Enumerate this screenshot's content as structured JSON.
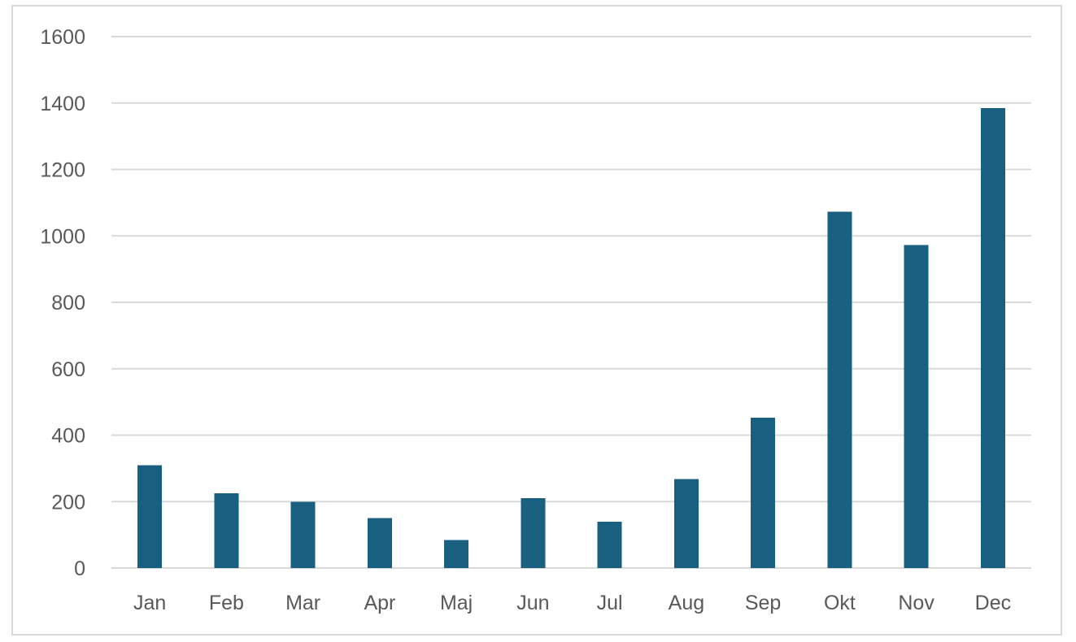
{
  "chart_data": {
    "type": "bar",
    "title": "",
    "xlabel": "",
    "ylabel": "",
    "categories": [
      "Jan",
      "Feb",
      "Mar",
      "Apr",
      "Maj",
      "Jun",
      "Jul",
      "Aug",
      "Sep",
      "Okt",
      "Nov",
      "Dec"
    ],
    "values": [
      310,
      225,
      200,
      150,
      85,
      210,
      140,
      268,
      453,
      1073,
      973,
      1385
    ],
    "ylim": [
      0,
      1600
    ],
    "yticks": [
      0,
      200,
      400,
      600,
      800,
      1000,
      1200,
      1400,
      1600
    ],
    "grid": true,
    "legend": "none",
    "bar_color": "#195f80",
    "grid_color": "#d9d9d9",
    "label_color": "#595959"
  }
}
